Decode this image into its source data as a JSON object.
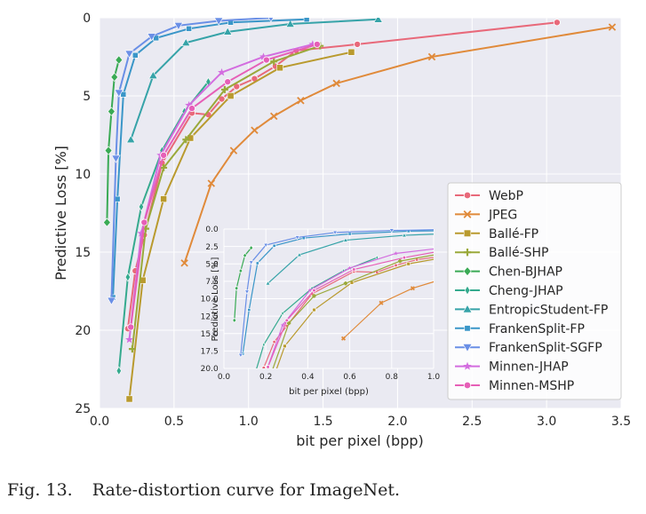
{
  "chart_data": {
    "type": "line",
    "title": "",
    "xlabel": "bit per pixel (bpp)",
    "ylabel": "Predictive Loss [%]",
    "xlim": [
      0.0,
      3.5
    ],
    "ylim": [
      25,
      0
    ],
    "xticks": [
      "0.0",
      "0.5",
      "1.0",
      "1.5",
      "2.0",
      "2.5",
      "3.0",
      "3.5"
    ],
    "yticks": [
      "0",
      "5",
      "10",
      "15",
      "20",
      "25"
    ],
    "grid": true,
    "legend_position": "right",
    "series": [
      {
        "name": "WebP",
        "color": "#e8697a",
        "marker": "circle",
        "x": [
          0.19,
          0.24,
          0.3,
          0.42,
          0.62,
          0.73,
          0.82,
          0.92,
          1.04,
          1.18,
          1.32,
          1.73,
          3.07
        ],
        "y": [
          19.9,
          16.2,
          13.9,
          9.3,
          6.1,
          6.2,
          5.2,
          4.4,
          3.9,
          3.1,
          2.1,
          1.7,
          0.3
        ]
      },
      {
        "name": "JPEG",
        "color": "#e08a3a",
        "marker": "x",
        "x": [
          0.57,
          0.75,
          0.9,
          1.04,
          1.17,
          1.35,
          1.59,
          2.23,
          3.44
        ],
        "y": [
          15.7,
          10.6,
          8.5,
          7.2,
          6.3,
          5.3,
          4.2,
          2.5,
          0.6
        ]
      },
      {
        "name": "Ballé-FP",
        "color": "#b99a2e",
        "marker": "square",
        "x": [
          0.2,
          0.29,
          0.43,
          0.61,
          0.88,
          1.21,
          1.69
        ],
        "y": [
          24.4,
          16.8,
          11.6,
          7.7,
          5.0,
          3.2,
          2.2
        ]
      },
      {
        "name": "Ballé-SHP",
        "color": "#9aa93a",
        "marker": "plus",
        "x": [
          0.22,
          0.31,
          0.43,
          0.58,
          0.84,
          1.17,
          1.48
        ],
        "y": [
          21.2,
          13.5,
          9.6,
          7.8,
          4.6,
          2.8,
          1.8
        ]
      },
      {
        "name": "Chen-BJHAP",
        "color": "#3aaa55",
        "marker": "diamond",
        "x": [
          0.05,
          0.06,
          0.08,
          0.1,
          0.13
        ],
        "y": [
          13.1,
          8.5,
          6.0,
          3.8,
          2.7
        ]
      },
      {
        "name": "Cheng-JHAP",
        "color": "#35aa8e",
        "marker": "diamond-thin",
        "x": [
          0.13,
          0.19,
          0.28,
          0.42,
          0.57,
          0.73
        ],
        "y": [
          22.6,
          16.6,
          12.1,
          8.5,
          6.0,
          4.1
        ]
      },
      {
        "name": "EntropicStudent-FP",
        "color": "#36a3a8",
        "marker": "triangle-up",
        "x": [
          0.21,
          0.36,
          0.58,
          0.86,
          1.28,
          1.87
        ],
        "y": [
          7.8,
          3.7,
          1.6,
          0.9,
          0.4,
          0.1
        ]
      },
      {
        "name": "FrankenSplit-FP",
        "color": "#3a96c8",
        "marker": "square-small",
        "x": [
          0.09,
          0.12,
          0.16,
          0.24,
          0.38,
          0.6,
          0.88,
          1.39
        ],
        "y": [
          17.9,
          11.6,
          4.9,
          2.4,
          1.3,
          0.7,
          0.3,
          0.1
        ]
      },
      {
        "name": "FrankenSplit-SGFP",
        "color": "#6a8fe6",
        "marker": "triangle-down",
        "x": [
          0.08,
          0.11,
          0.13,
          0.2,
          0.35,
          0.53,
          0.8,
          1.15
        ],
        "y": [
          18.1,
          9.0,
          4.8,
          2.3,
          1.2,
          0.5,
          0.2,
          0.0
        ]
      },
      {
        "name": "Minnen-JHAP",
        "color": "#d36ddf",
        "marker": "star",
        "x": [
          0.2,
          0.28,
          0.41,
          0.6,
          0.82,
          1.1,
          1.43
        ],
        "y": [
          20.6,
          13.8,
          8.8,
          5.6,
          3.5,
          2.5,
          1.7
        ]
      },
      {
        "name": "Minnen-MSHP",
        "color": "#e65fb7",
        "marker": "circle",
        "x": [
          0.21,
          0.3,
          0.43,
          0.62,
          0.86,
          1.12,
          1.46
        ],
        "y": [
          19.8,
          13.1,
          8.8,
          5.8,
          4.1,
          2.7,
          1.7
        ]
      }
    ],
    "inset": {
      "xlabel": "bit per pixel (bpp)",
      "ylabel": "Predictive Loss [%]",
      "xlim": [
        0.0,
        1.0
      ],
      "ylim": [
        20,
        0
      ],
      "xticks": [
        "0.0",
        "0.2",
        "0.4",
        "0.6",
        "0.8",
        "1.0"
      ],
      "yticks": [
        "0.0",
        "2.5",
        "5.0",
        "7.5",
        "10.0",
        "12.5",
        "15.0",
        "17.5",
        "20.0"
      ]
    }
  },
  "caption": {
    "label": "Fig. 13.",
    "text": "Rate-distortion curve for ImageNet."
  }
}
